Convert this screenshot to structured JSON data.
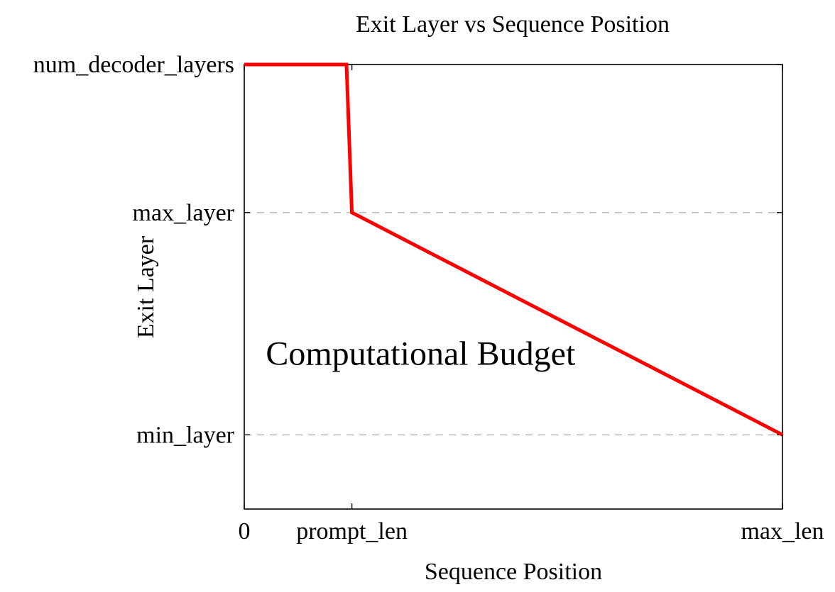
{
  "chart_data": {
    "type": "line",
    "title": "Exit Layer vs Sequence Position",
    "xlabel": "Sequence Position",
    "ylabel": "Exit Layer",
    "x_ticks": [
      {
        "label": "0",
        "value": 0
      },
      {
        "label": "prompt_len",
        "value": 0.2
      },
      {
        "label": "max_len",
        "value": 1.0
      }
    ],
    "y_ticks": [
      {
        "label": "min_layer",
        "value": 0.167
      },
      {
        "label": "max_layer",
        "value": 0.667
      },
      {
        "label": "num_decoder_layers",
        "value": 1.0
      }
    ],
    "xlim": [
      0,
      1
    ],
    "ylim": [
      0,
      1
    ],
    "gridlines_y": [
      0.167,
      0.667
    ],
    "series": [
      {
        "color": "#ff0000",
        "points": [
          {
            "x": 0,
            "y": 1.0
          },
          {
            "x": 0.19,
            "y": 1.0
          },
          {
            "x": 0.2,
            "y": 0.667
          },
          {
            "x": 1.0,
            "y": 0.167
          }
        ]
      }
    ],
    "annotation": {
      "text": "Computational Budget",
      "x": 0.04,
      "y": 0.35
    }
  }
}
